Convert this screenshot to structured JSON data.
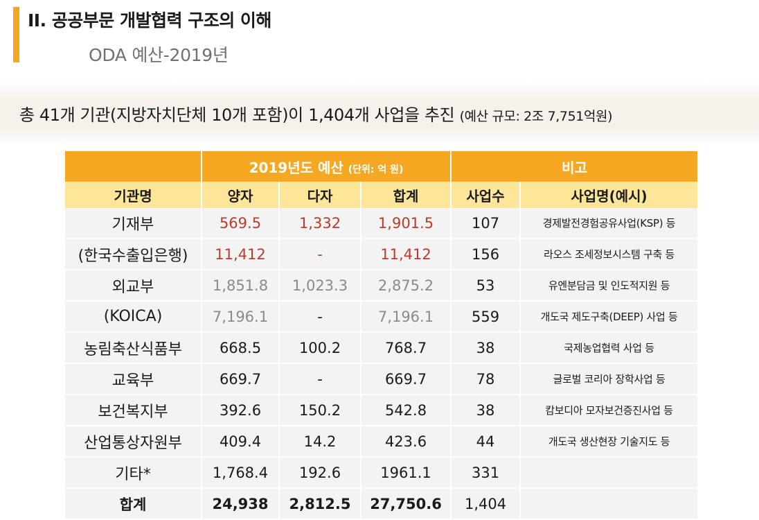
{
  "header": {
    "title": "II. 공공부문 개발협력 구조의 이해",
    "subtitle": "ODA 예산-2019년"
  },
  "summary": {
    "main": "총 41개 기관(지방자치단체 10개 포함)이 1,404개 사업을 추진",
    "budget_note": "(예산 규모: 2조 7,751억원)"
  },
  "table": {
    "group_header": "2019년도 예산",
    "group_unit": "(단위: 억 원)",
    "remarks_header": "비고",
    "columns": [
      "기관명",
      "양자",
      "다자",
      "합계",
      "사업수",
      "사업명(예시)"
    ],
    "rows": [
      {
        "name": "기재부",
        "bilateral": "569.5",
        "multilateral": "1,332",
        "total": "1,901.5",
        "count": "107",
        "example": "경제발전경험공유사업(KSP) 등",
        "style": "red"
      },
      {
        "name": "(한국수출입은행)",
        "bilateral": "11,412",
        "multilateral": "-",
        "total": "11,412",
        "count": "156",
        "example": "라오스 조세정보시스템 구축 등",
        "style": "red"
      },
      {
        "name": "외교부",
        "bilateral": "1,851.8",
        "multilateral": "1,023.3",
        "total": "2,875.2",
        "count": "53",
        "example": "유엔분담금 및 인도적지원 등",
        "style": "grey"
      },
      {
        "name": "(KOICA)",
        "bilateral": "7,196.1",
        "multilateral": "-",
        "total": "7,196.1",
        "count": "559",
        "example": "개도국 제도구축(DEEP) 사업 등",
        "style": "grey"
      },
      {
        "name": "농림축산식품부",
        "bilateral": "668.5",
        "multilateral": "100.2",
        "total": "768.7",
        "count": "38",
        "example": "국제농업협력 사업 등",
        "style": "plain"
      },
      {
        "name": "교육부",
        "bilateral": "669.7",
        "multilateral": "-",
        "total": "669.7",
        "count": "78",
        "example": "글로벌 코리아 장학사업 등",
        "style": "plain"
      },
      {
        "name": "보건복지부",
        "bilateral": "392.6",
        "multilateral": "150.2",
        "total": "542.8",
        "count": "38",
        "example": "캄보디아 모자보건증진사업 등",
        "style": "plain"
      },
      {
        "name": "산업통상자원부",
        "bilateral": "409.4",
        "multilateral": "14.2",
        "total": "423.6",
        "count": "44",
        "example": "개도국 생산현장 기술지도 등",
        "style": "plain"
      },
      {
        "name": "기타*",
        "bilateral": "1,768.4",
        "multilateral": "192.6",
        "total": "1961.1",
        "count": "331",
        "example": "",
        "style": "plain"
      }
    ],
    "total_row": {
      "name": "합계",
      "bilateral": "24,938",
      "multilateral": "2,812.5",
      "total": "27,750.6",
      "count": "1,404",
      "example": ""
    }
  },
  "colors": {
    "accent": "#f5a623",
    "header_orange": "#f7a823",
    "header_yellow": "#fde59a",
    "highlight_red": "#c0392b",
    "muted_grey": "#8a8a8a"
  }
}
